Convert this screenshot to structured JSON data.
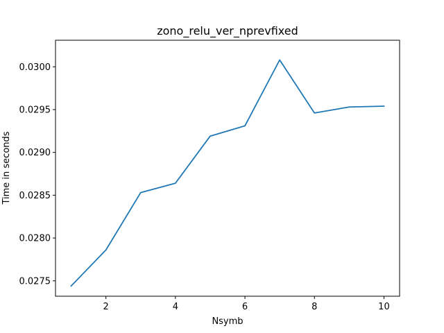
{
  "chart_data": {
    "type": "line",
    "title": "zono_relu_ver_nprevfixed",
    "xlabel": "Nsymb",
    "ylabel": "Time in seconds",
    "xlim": [
      0.55,
      10.45
    ],
    "ylim": [
      0.02732,
      0.03031
    ],
    "x_ticks": [
      2,
      4,
      6,
      8,
      10
    ],
    "x_tick_labels": [
      "2",
      "4",
      "6",
      "8",
      "10"
    ],
    "y_ticks": [
      0.0275,
      0.028,
      0.0285,
      0.029,
      0.0295,
      0.03
    ],
    "y_tick_labels": [
      "0.0275",
      "0.0280",
      "0.0285",
      "0.0290",
      "0.0295",
      "0.0300"
    ],
    "grid": false,
    "series": [
      {
        "color": "#1f77b4",
        "x": [
          1,
          2,
          3,
          4,
          5,
          6,
          7,
          8,
          9,
          10
        ],
        "values": [
          0.02744,
          0.02786,
          0.02853,
          0.02864,
          0.02919,
          0.02931,
          0.03008,
          0.02946,
          0.02953,
          0.02954
        ]
      }
    ]
  }
}
